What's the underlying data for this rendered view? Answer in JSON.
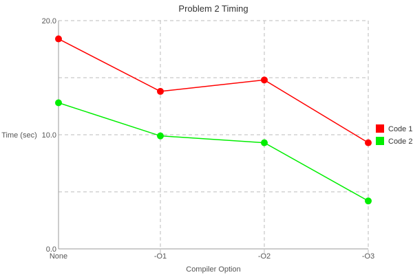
{
  "chart_data": {
    "type": "line",
    "title": "Problem 2 Timing",
    "xlabel": "Compiler Option",
    "ylabel": "Time (sec)",
    "categories": [
      "None",
      "-O1",
      "-O2",
      "-O3"
    ],
    "ylim": [
      0,
      20
    ],
    "y_ticks": [
      "0.0",
      "10.0",
      "20.0"
    ],
    "grid": true,
    "legend_position": "right",
    "series": [
      {
        "name": "Code 1",
        "color": "#ff0000",
        "values": [
          18.4,
          13.8,
          14.8,
          9.3
        ]
      },
      {
        "name": "Code 2",
        "color": "#00ee00",
        "values": [
          12.8,
          9.9,
          9.3,
          4.2
        ]
      }
    ]
  }
}
